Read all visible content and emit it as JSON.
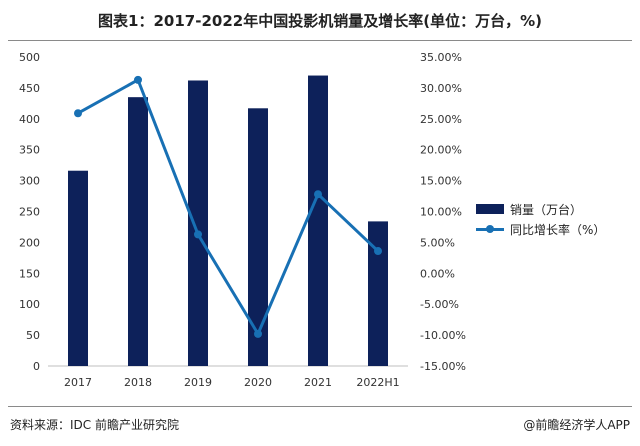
{
  "header": {
    "title": "图表1：2017-2022年中国投影机销量及增长率(单位：万台，%)"
  },
  "footer": {
    "source": "资料来源：IDC 前瞻产业研究院",
    "brand": "@前瞻经济学人APP"
  },
  "colors": {
    "bar": "#0d215a",
    "line": "#1870b4",
    "axis": "#bfbfbf",
    "text": "#333333"
  },
  "chart_data": {
    "type": "bar",
    "categories": [
      "2017",
      "2018",
      "2019",
      "2020",
      "2021",
      "2022H1"
    ],
    "series": [
      {
        "name": "销量（万台）",
        "type": "bar",
        "axis": "left",
        "values": [
          316,
          435,
          462,
          417,
          470,
          234
        ]
      },
      {
        "name": "同比增长率（%）",
        "type": "line",
        "axis": "right",
        "values": [
          25.9,
          31.3,
          6.3,
          -9.8,
          12.8,
          3.6
        ]
      }
    ],
    "y_left": {
      "min": 0,
      "max": 500,
      "step": 50
    },
    "y_right": {
      "min": -15,
      "max": 35,
      "step": 5
    },
    "yticks_left": [
      "0",
      "50",
      "100",
      "150",
      "200",
      "250",
      "300",
      "350",
      "400",
      "450",
      "500"
    ],
    "yticks_right": [
      "-15.00%",
      "-10.00%",
      "-5.00%",
      "0.00%",
      "5.00%",
      "10.00%",
      "15.00%",
      "20.00%",
      "25.00%",
      "30.00%",
      "35.00%"
    ],
    "legend": {
      "placement": "right"
    },
    "grid": false
  }
}
